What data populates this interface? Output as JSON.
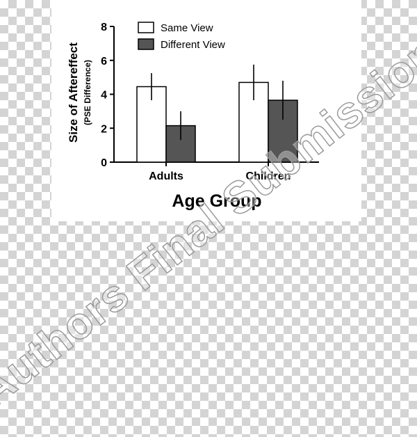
{
  "chart_data": {
    "type": "bar",
    "categories": [
      "Adults",
      "Children"
    ],
    "series": [
      {
        "name": "Same View",
        "values": [
          4.45,
          4.7
        ],
        "errors": [
          0.8,
          1.05
        ],
        "color": "#ffffff"
      },
      {
        "name": "Different View",
        "values": [
          2.15,
          3.65
        ],
        "errors": [
          0.85,
          1.15
        ],
        "color": "#555555"
      }
    ],
    "title": "",
    "xlabel": "Age Group",
    "ylabel": "Size of Aftereffect",
    "ylabel_sub": "(PSE Difference)",
    "ylim": [
      0,
      8
    ],
    "yticks": [
      0,
      2,
      4,
      6,
      8
    ],
    "grid": false,
    "legend_position": "top-left"
  },
  "watermark": "Authors Final Submission"
}
